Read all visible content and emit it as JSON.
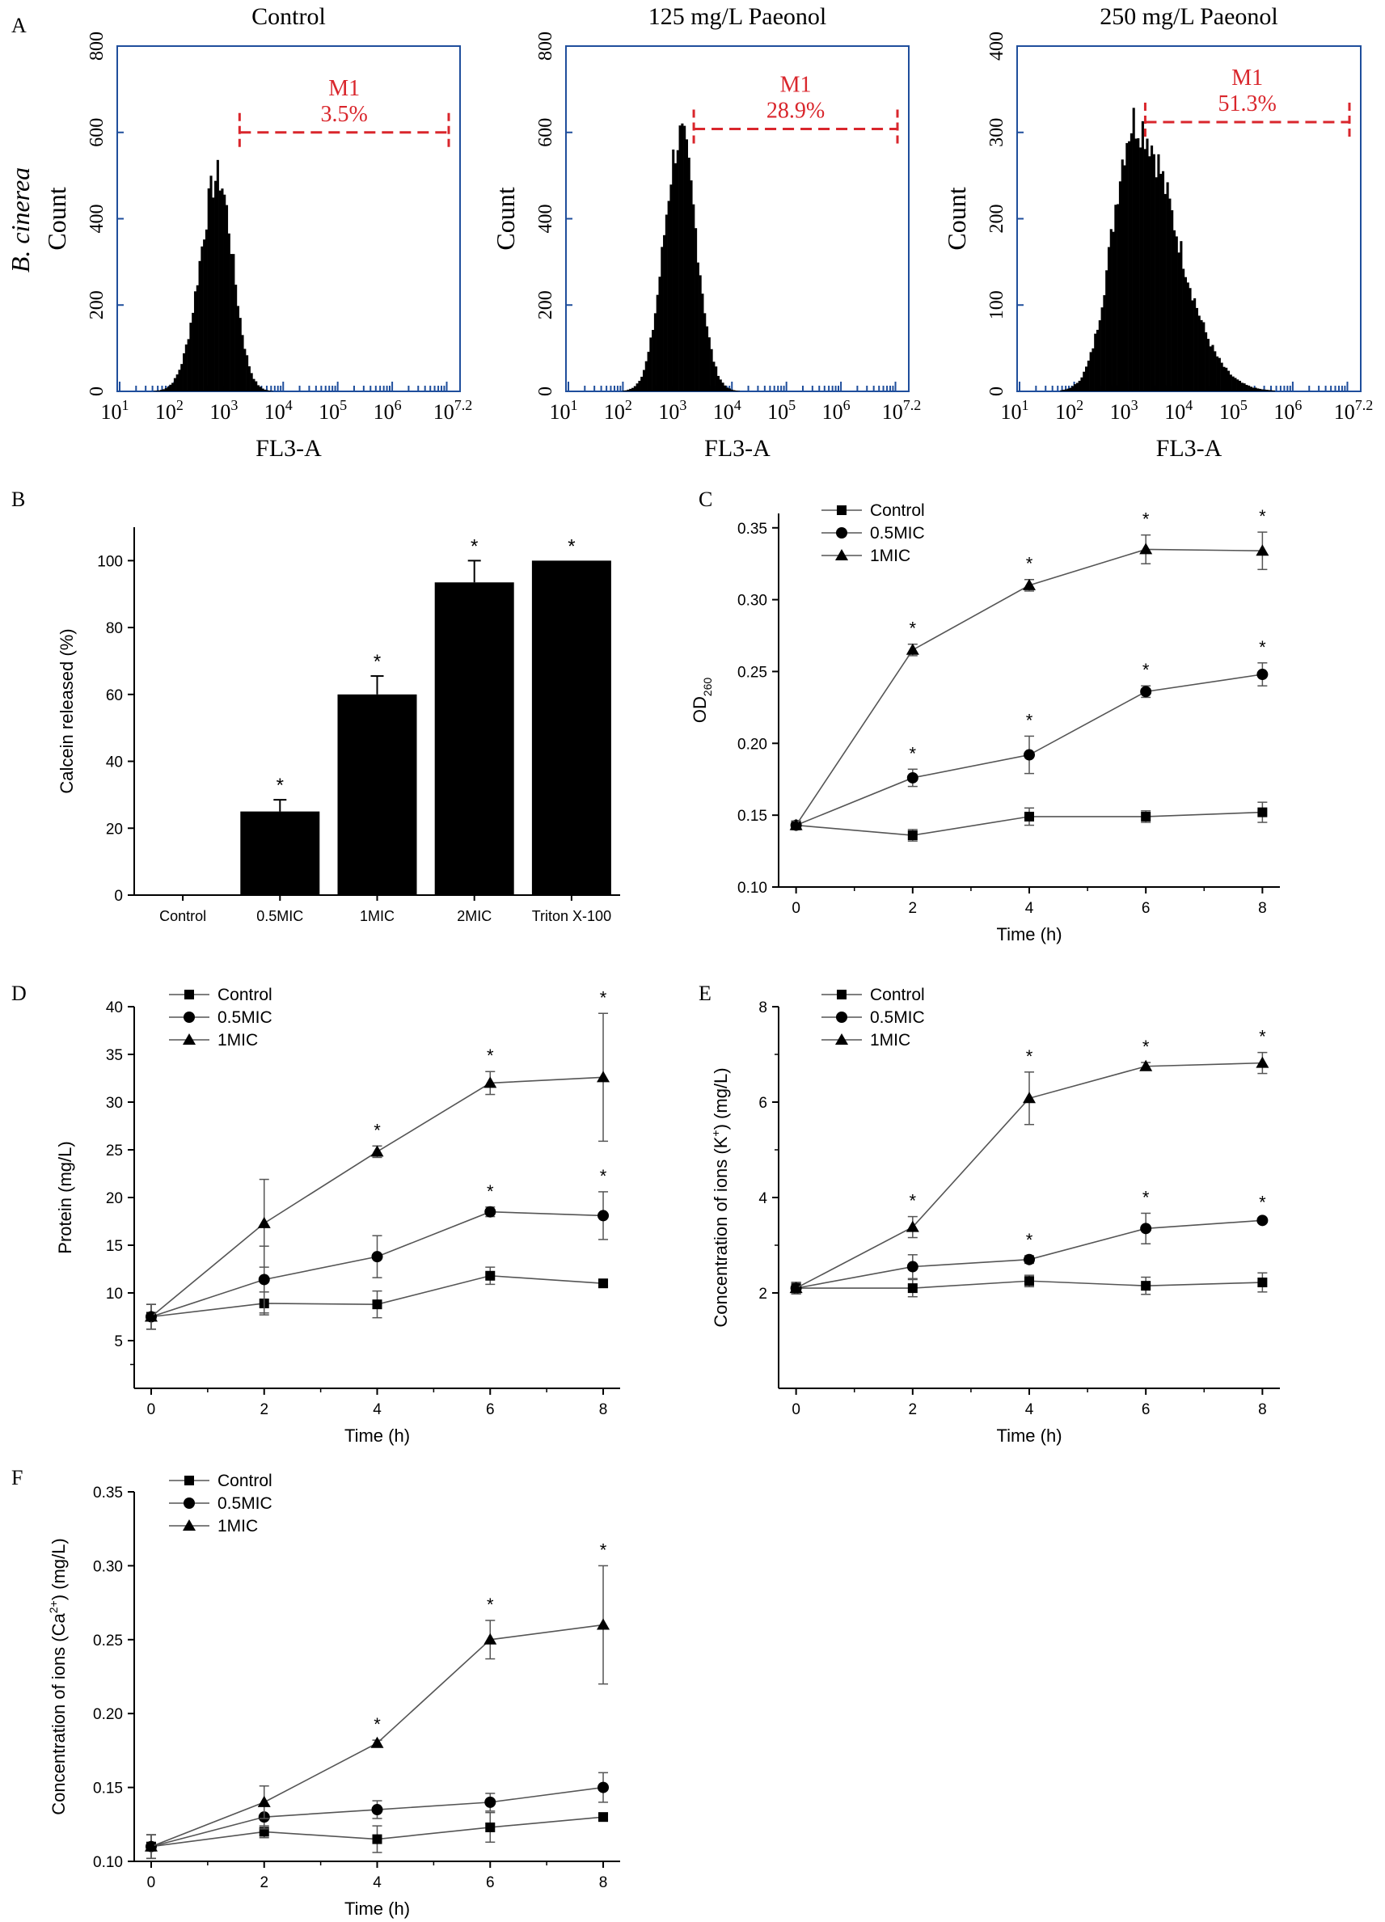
{
  "colors": {
    "frame": "#1f4e9c",
    "gate": "#d9262c",
    "bar": "#000000",
    "line": "#555555",
    "text": "#000000"
  },
  "chart_data": [
    {
      "id": "A",
      "type": "histogram",
      "panel_label": "A",
      "row_label": "B. cinerea",
      "xlabel": "FL3-A",
      "ylabel": "Count",
      "x_tick_labels": [
        {
          "base": "10",
          "exp": "1"
        },
        {
          "base": "10",
          "exp": "2"
        },
        {
          "base": "10",
          "exp": "3"
        },
        {
          "base": "10",
          "exp": "4"
        },
        {
          "base": "10",
          "exp": "5"
        },
        {
          "base": "10",
          "exp": "6"
        },
        {
          "base": "10",
          "exp": "7.2"
        }
      ],
      "x_log_range": [
        1,
        7.2
      ],
      "gate_label": "M1",
      "histograms": [
        {
          "title": "Control",
          "ylim": [
            0,
            800
          ],
          "yticks": [
            "0",
            "200",
            "400",
            "600",
            "800"
          ],
          "peak_log": 2.8,
          "peak_count": 540,
          "width_left": 0.33,
          "width_right": 0.28,
          "gate_start_log": 3.2,
          "gate_value": 3.5,
          "gate_percent": "3.5%"
        },
        {
          "title": "125 mg/L Paeonol",
          "ylim": [
            0,
            800
          ],
          "yticks": [
            "0",
            "200",
            "400",
            "600",
            "800"
          ],
          "peak_log": 3.05,
          "peak_count": 640,
          "width_left": 0.3,
          "width_right": 0.3,
          "gate_start_log": 3.3,
          "gate_value": 28.9,
          "gate_percent": "28.9%"
        },
        {
          "title": "250 mg/L Paeonol",
          "ylim": [
            0,
            400
          ],
          "yticks": [
            "0",
            "100",
            "200",
            "300",
            "400"
          ],
          "peak_log": 3.1,
          "peak_count": 340,
          "width_left": 0.4,
          "width_right": 0.75,
          "gate_start_log": 3.3,
          "gate_value": 51.3,
          "gate_percent": "51.3%"
        }
      ]
    },
    {
      "id": "B",
      "type": "bar",
      "panel_label": "B",
      "title": "",
      "ylabel": "Calcein released (%)",
      "categories": [
        "Control",
        "0.5MIC",
        "1MIC",
        "2MIC",
        "Triton X-100"
      ],
      "values": [
        0,
        25,
        60,
        93.5,
        100
      ],
      "errors": [
        0,
        3.5,
        5.5,
        6.5,
        0
      ],
      "significant": [
        false,
        true,
        true,
        true,
        true
      ],
      "ylim": [
        0,
        110
      ],
      "yticks": [
        0,
        20,
        40,
        60,
        80,
        100
      ]
    },
    {
      "id": "C",
      "type": "line",
      "panel_label": "C",
      "ylabel_base": "OD",
      "ylabel_sub": "260",
      "xlabel": "Time (h)",
      "x": [
        0,
        2,
        4,
        6,
        8
      ],
      "xlim": [
        -0.3,
        8.3
      ],
      "ylim": [
        0.1,
        0.36
      ],
      "yticks": [
        "0.10",
        "0.15",
        "0.20",
        "0.25",
        "0.30",
        "0.35"
      ],
      "series": [
        {
          "name": "Control",
          "marker": "square",
          "values": [
            0.143,
            0.136,
            0.149,
            0.149,
            0.152
          ],
          "errors": [
            0.003,
            0.004,
            0.006,
            0.004,
            0.007
          ],
          "significant": [
            false,
            false,
            false,
            false,
            false
          ]
        },
        {
          "name": "0.5MIC",
          "marker": "circle",
          "values": [
            0.143,
            0.176,
            0.192,
            0.236,
            0.248
          ],
          "errors": [
            0.003,
            0.006,
            0.013,
            0.004,
            0.008
          ],
          "significant": [
            false,
            true,
            true,
            true,
            true
          ]
        },
        {
          "name": "1MIC",
          "marker": "triangle",
          "values": [
            0.143,
            0.265,
            0.31,
            0.335,
            0.334
          ],
          "errors": [
            0.003,
            0.004,
            0.004,
            0.01,
            0.013
          ],
          "significant": [
            false,
            true,
            true,
            true,
            true
          ]
        }
      ]
    },
    {
      "id": "D",
      "type": "line",
      "panel_label": "D",
      "ylabel": "Protein (mg/L)",
      "xlabel": "Time (h)",
      "x": [
        0,
        2,
        4,
        6,
        8
      ],
      "xlim": [
        -0.3,
        8.3
      ],
      "ylim": [
        0,
        40
      ],
      "yticks": [
        "5",
        "10",
        "15",
        "20",
        "25",
        "30",
        "35",
        "40"
      ],
      "series": [
        {
          "name": "Control",
          "marker": "square",
          "values": [
            7.5,
            8.9,
            8.8,
            11.8,
            11.0
          ],
          "errors": [
            1.3,
            1.2,
            1.4,
            0.9,
            0.3
          ],
          "significant": [
            false,
            false,
            false,
            false,
            false
          ]
        },
        {
          "name": "0.5MIC",
          "marker": "circle",
          "values": [
            7.5,
            11.4,
            13.8,
            18.5,
            18.1
          ],
          "errors": [
            1.3,
            3.5,
            2.2,
            0.5,
            2.5
          ],
          "significant": [
            false,
            false,
            false,
            true,
            true
          ]
        },
        {
          "name": "1MIC",
          "marker": "triangle",
          "values": [
            7.5,
            17.3,
            24.8,
            32.0,
            32.6
          ],
          "errors": [
            1.3,
            4.6,
            0.6,
            1.2,
            6.7
          ],
          "significant": [
            false,
            false,
            true,
            true,
            true
          ]
        }
      ]
    },
    {
      "id": "E",
      "type": "line",
      "panel_label": "E",
      "ylabel_pre": "Concentration of  ions (K",
      "ylabel_sup": "+",
      "ylabel_post": ") (mg/L)",
      "xlabel": "Time (h)",
      "x": [
        0,
        2,
        4,
        6,
        8
      ],
      "xlim": [
        -0.3,
        8.3
      ],
      "ylim": [
        0,
        8
      ],
      "yticks": [
        "2",
        "4",
        "6",
        "8"
      ],
      "series": [
        {
          "name": "Control",
          "marker": "square",
          "values": [
            2.1,
            2.1,
            2.25,
            2.15,
            2.22
          ],
          "errors": [
            0.12,
            0.18,
            0.12,
            0.18,
            0.2
          ],
          "significant": [
            false,
            false,
            false,
            false,
            false
          ]
        },
        {
          "name": "0.5MIC",
          "marker": "circle",
          "values": [
            2.1,
            2.55,
            2.7,
            3.35,
            3.52
          ],
          "errors": [
            0.12,
            0.25,
            0.08,
            0.32,
            0.05
          ],
          "significant": [
            false,
            false,
            true,
            true,
            true
          ]
        },
        {
          "name": "1MIC",
          "marker": "triangle",
          "values": [
            2.1,
            3.38,
            6.08,
            6.75,
            6.82
          ],
          "errors": [
            0.12,
            0.22,
            0.55,
            0.08,
            0.22
          ],
          "significant": [
            false,
            true,
            true,
            true,
            true
          ]
        }
      ]
    },
    {
      "id": "F",
      "type": "line",
      "panel_label": "F",
      "ylabel_pre": "Concentration of  ions (Ca",
      "ylabel_sup": "2+",
      "ylabel_post": ") (mg/L)",
      "xlabel": "Time (h)",
      "x": [
        0,
        2,
        4,
        6,
        8
      ],
      "xlim": [
        -0.3,
        8.3
      ],
      "ylim": [
        0.1,
        0.35
      ],
      "yticks": [
        "0.10",
        "0.15",
        "0.20",
        "0.25",
        "0.30",
        "0.35"
      ],
      "series": [
        {
          "name": "Control",
          "marker": "square",
          "values": [
            0.11,
            0.12,
            0.115,
            0.123,
            0.13
          ],
          "errors": [
            0.008,
            0.004,
            0.009,
            0.01,
            0.002
          ],
          "significant": [
            false,
            false,
            false,
            false,
            false
          ]
        },
        {
          "name": "0.5MIC",
          "marker": "circle",
          "values": [
            0.11,
            0.13,
            0.135,
            0.14,
            0.15
          ],
          "errors": [
            0.008,
            0.008,
            0.006,
            0.006,
            0.01
          ],
          "significant": [
            false,
            false,
            false,
            false,
            false
          ]
        },
        {
          "name": "1MIC",
          "marker": "triangle",
          "values": [
            0.11,
            0.14,
            0.18,
            0.25,
            0.26
          ],
          "errors": [
            0.008,
            0.011,
            0.002,
            0.013,
            0.04
          ],
          "significant": [
            false,
            false,
            true,
            true,
            true
          ]
        }
      ]
    }
  ],
  "significance_mark": "*"
}
